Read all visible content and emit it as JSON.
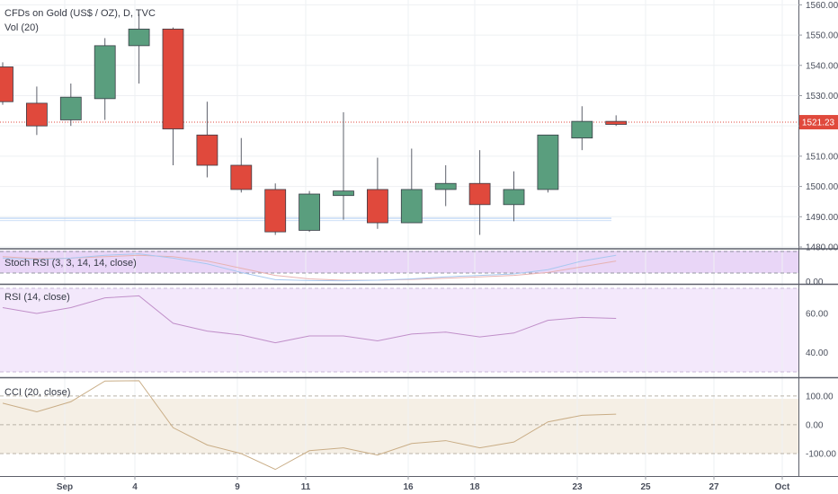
{
  "chart_data": {
    "type": "candlestick",
    "title": "CFDs on Gold (US$ / OZ), D, TVC",
    "volume_label": "Vol (20)",
    "colors": {
      "up": "#5a9e7e",
      "down": "#e0493c",
      "wick": "#5d606b",
      "price_line": "#e0493c"
    },
    "x_ticks": [
      "Sep",
      "4",
      "9",
      "11",
      "16",
      "18",
      "23",
      "25",
      "27",
      "Oct"
    ],
    "price_axis": {
      "ticks": [
        "1560.00",
        "1550.00",
        "1540.00",
        "1530.00",
        "1520.00",
        "1510.00",
        "1500.00",
        "1490.00",
        "1480.00"
      ],
      "range": [
        1480,
        1561
      ]
    },
    "last_price": "1521.23",
    "candles": [
      {
        "o": 1539.5,
        "h": 1541,
        "l": 1527,
        "c": 1528
      },
      {
        "o": 1527.5,
        "h": 1533,
        "l": 1517,
        "c": 1520
      },
      {
        "o": 1522,
        "h": 1534,
        "l": 1520,
        "c": 1529.5
      },
      {
        "o": 1529,
        "h": 1549,
        "l": 1522,
        "c": 1546.5
      },
      {
        "o": 1546.5,
        "h": 1557,
        "l": 1534,
        "c": 1552
      },
      {
        "o": 1552,
        "h": 1552.5,
        "l": 1507,
        "c": 1519
      },
      {
        "o": 1517,
        "h": 1528,
        "l": 1503,
        "c": 1507
      },
      {
        "o": 1507,
        "h": 1516,
        "l": 1498,
        "c": 1499
      },
      {
        "o": 1499,
        "h": 1501,
        "l": 1484,
        "c": 1485
      },
      {
        "o": 1485.5,
        "h": 1498.5,
        "l": 1485,
        "c": 1497.5
      },
      {
        "o": 1497,
        "h": 1524.5,
        "l": 1489,
        "c": 1498.5
      },
      {
        "o": 1499,
        "h": 1509.5,
        "l": 1486,
        "c": 1488
      },
      {
        "o": 1488,
        "h": 1512.5,
        "l": 1488,
        "c": 1499
      },
      {
        "o": 1499,
        "h": 1507,
        "l": 1493.5,
        "c": 1501
      },
      {
        "o": 1501,
        "h": 1512,
        "l": 1484,
        "c": 1494
      },
      {
        "o": 1494,
        "h": 1505,
        "l": 1488.5,
        "c": 1499
      },
      {
        "o": 1499,
        "h": 1517,
        "l": 1498,
        "c": 1517
      },
      {
        "o": 1516,
        "h": 1526.5,
        "l": 1512,
        "c": 1521.5
      },
      {
        "o": 1521.5,
        "h": 1523.5,
        "l": 1520,
        "c": 1520.5
      }
    ],
    "stoch_rsi": {
      "label": "Stoch RSI (3, 3, 14, 14, close)",
      "ticks": [
        "0.00"
      ],
      "k": [
        80,
        75,
        80,
        90,
        95,
        80,
        60,
        30,
        5,
        2,
        1,
        3,
        8,
        15,
        20,
        25,
        40,
        70,
        90
      ],
      "d": [
        85,
        78,
        80,
        85,
        90,
        85,
        70,
        45,
        20,
        8,
        3,
        3,
        6,
        10,
        15,
        20,
        30,
        50,
        70
      ]
    },
    "rsi": {
      "label": "RSI (14, close)",
      "ticks": [
        "60.00",
        "40.00"
      ],
      "range": [
        27.4,
        74.7
      ],
      "values": [
        63,
        60,
        63,
        68,
        69,
        55,
        51,
        49,
        45,
        48.5,
        48.5,
        46,
        49.5,
        50.5,
        48,
        50,
        56.5,
        58,
        57.5
      ]
    },
    "cci": {
      "label": "CCI (20, close)",
      "ticks": [
        "100.00",
        "0.00",
        "-100.00"
      ],
      "range": [
        -178,
        162
      ],
      "values": [
        75,
        45,
        80,
        152,
        153,
        -10,
        -70,
        -100,
        -155,
        -90,
        -80,
        -105,
        -65,
        -55,
        -80,
        -60,
        10,
        33,
        37
      ]
    }
  }
}
